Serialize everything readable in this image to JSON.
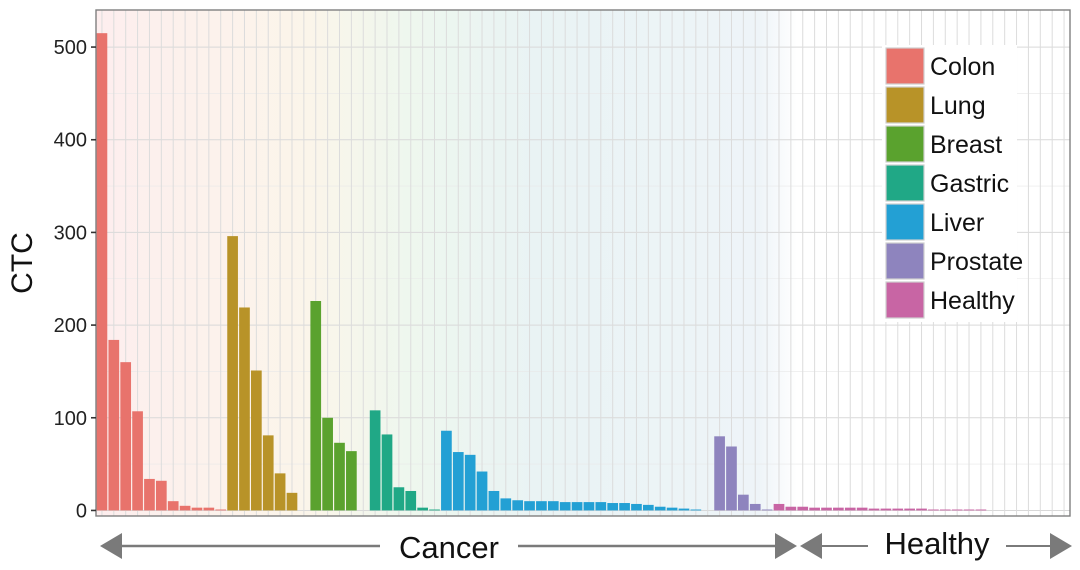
{
  "chart_data": {
    "type": "bar",
    "ylabel": "CTC",
    "yticks": [
      0,
      100,
      200,
      300,
      400,
      500
    ],
    "ylim": [
      -6,
      540
    ],
    "grid": true,
    "legend_position": "top-right",
    "legend": [
      {
        "name": "Colon",
        "color": "#E8736C"
      },
      {
        "name": "Lung",
        "color": "#B89328"
      },
      {
        "name": "Breast",
        "color": "#5AA22E"
      },
      {
        "name": "Gastric",
        "color": "#20A886"
      },
      {
        "name": "Liver",
        "color": "#23A0D4"
      },
      {
        "name": "Prostate",
        "color": "#8E84BE"
      },
      {
        "name": "Healthy",
        "color": "#C865A4"
      }
    ],
    "series": [
      {
        "name": "Colon",
        "values": [
          515,
          184,
          160,
          107,
          34,
          32,
          10,
          5,
          3,
          3,
          1
        ]
      },
      {
        "name": "Lung",
        "values": [
          296,
          219,
          151,
          81,
          40,
          19,
          0
        ]
      },
      {
        "name": "Breast",
        "values": [
          226,
          100,
          73,
          64,
          0
        ]
      },
      {
        "name": "Gastric",
        "values": [
          108,
          82,
          25,
          21,
          3,
          1
        ]
      },
      {
        "name": "Liver",
        "values": [
          86,
          63,
          60,
          42,
          21,
          13,
          11,
          10,
          10,
          10,
          9,
          9,
          9,
          9,
          8,
          8,
          7,
          6,
          4,
          3,
          2,
          1,
          0
        ]
      },
      {
        "name": "Prostate",
        "values": [
          80,
          69,
          17,
          7,
          1
        ]
      },
      {
        "name": "Healthy",
        "values": [
          7,
          4,
          4,
          3,
          3,
          3,
          3,
          3,
          2,
          2,
          2,
          2,
          2,
          1,
          1,
          1,
          1,
          1,
          0,
          0,
          0,
          0,
          0,
          0,
          0
        ]
      }
    ],
    "group_labels": {
      "cancer": "Cancer",
      "healthy": "Healthy"
    }
  }
}
